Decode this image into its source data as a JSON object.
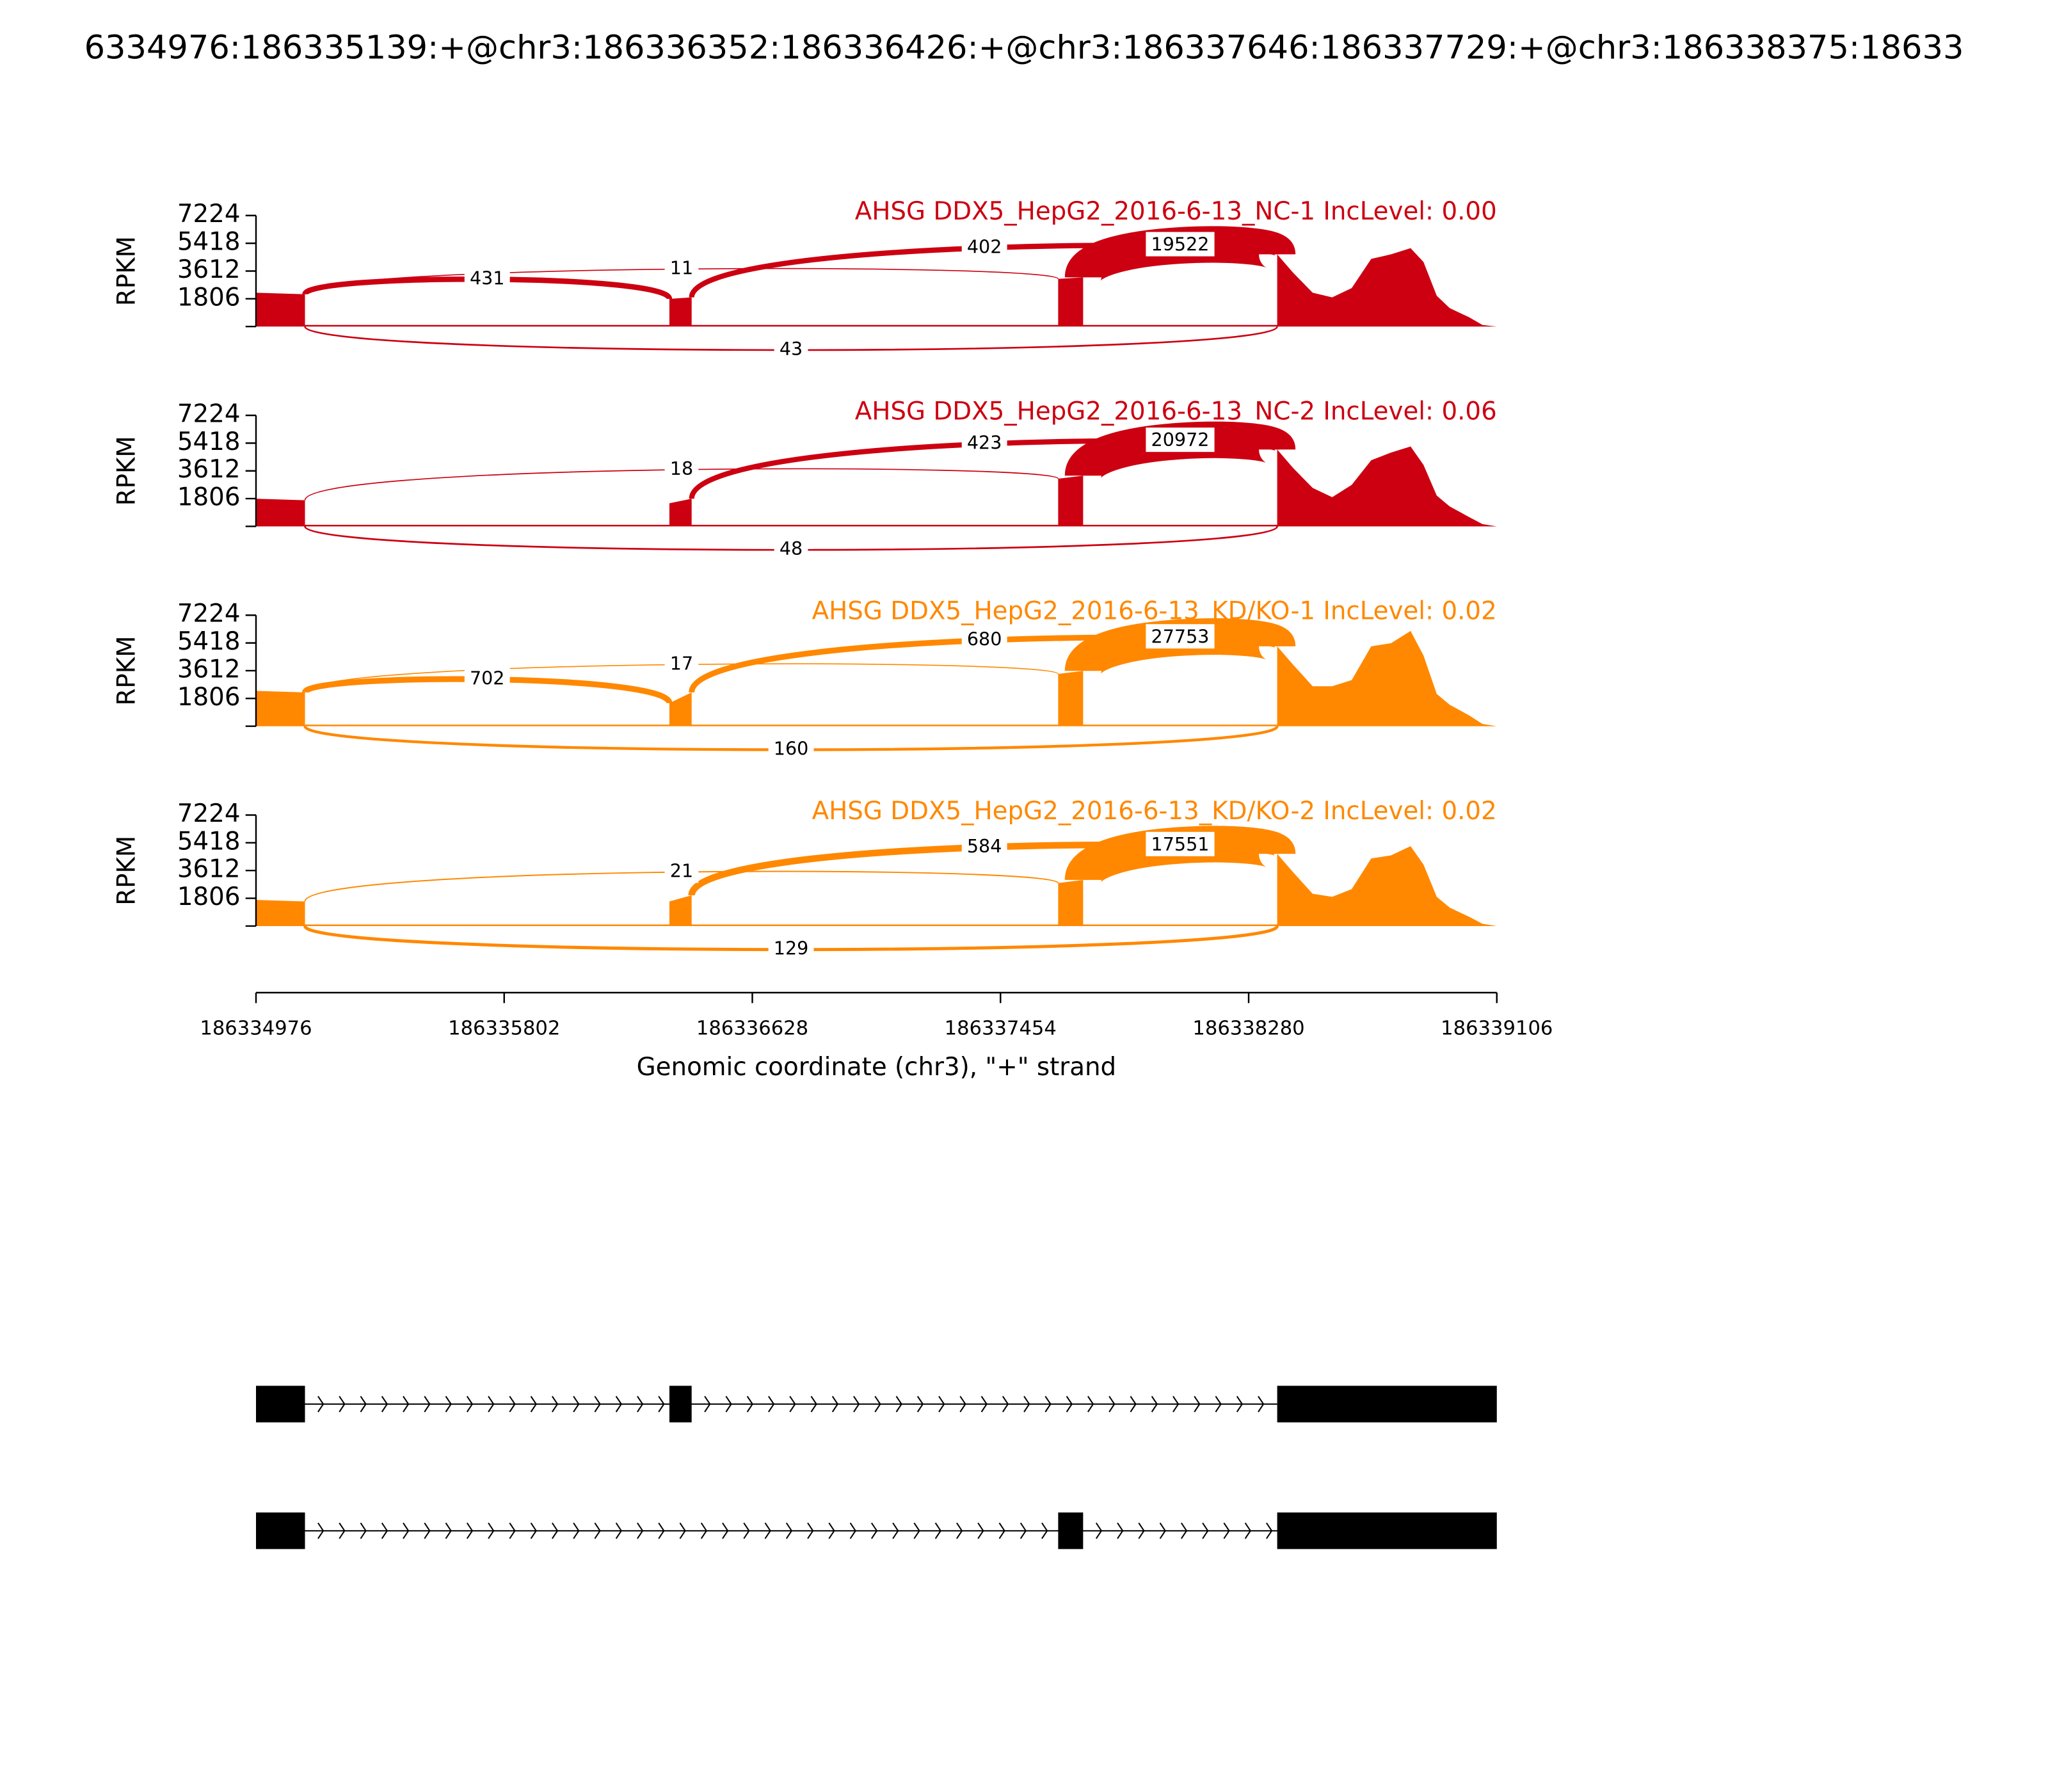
{
  "chart_data": {
    "type": "sashimi",
    "title": "6334976:186335139:+@chr3:186336352:186336426:+@chr3:186337646:186337729:+@chr3:186338375:18633",
    "xlabel": "Genomic coordinate (chr3), \"+\" strand",
    "ylabel": "RPKM",
    "xlim": [
      186334976,
      186339106
    ],
    "xticks": [
      186334976,
      186335802,
      186336628,
      186337454,
      186338280,
      186339106
    ],
    "ylim": [
      0,
      7224
    ],
    "yticks": [
      1806,
      3612,
      5418,
      7224
    ],
    "coverage_x": [
      186334976,
      186334976,
      186335139,
      186335139,
      186336352,
      186336352,
      186336426,
      186336426,
      186337646,
      186337646,
      186337729,
      186337729,
      186338375,
      186338375,
      186338428,
      186338493,
      186338558,
      186338623,
      186338688,
      186338754,
      186338819,
      186338862,
      186338906,
      186338949,
      186339014,
      186339058,
      186339106
    ],
    "panels": [
      {
        "label": "AHSG DDX5_HepG2_2016-6-13_NC-1 IncLevel: 0.00",
        "color": "#cc0011",
        "coverage": [
          0,
          2200,
          2100,
          100,
          100,
          1800,
          1900,
          100,
          100,
          3100,
          3200,
          100,
          100,
          4700,
          3500,
          2200,
          1900,
          2500,
          4400,
          4700,
          5100,
          4200,
          2000,
          1200,
          600,
          100,
          0
        ],
        "junctions": [
          {
            "start": 186335139,
            "end": 186336352,
            "count": 431,
            "side": "above"
          },
          {
            "start": 186335139,
            "end": 186337646,
            "count": 11,
            "side": "above"
          },
          {
            "start": 186336426,
            "end": 186338375,
            "count": 402,
            "side": "above"
          },
          {
            "start": 186337729,
            "end": 186338375,
            "count": 19522,
            "side": "above"
          },
          {
            "start": 186335139,
            "end": 186338375,
            "count": 43,
            "side": "below"
          }
        ]
      },
      {
        "label": "AHSG DDX5_HepG2_2016-6-13_NC-2 IncLevel: 0.06",
        "color": "#cc0011",
        "coverage": [
          0,
          1800,
          1700,
          100,
          100,
          1500,
          1800,
          100,
          100,
          3100,
          3300,
          100,
          100,
          5000,
          3800,
          2500,
          1900,
          2700,
          4300,
          4800,
          5200,
          4000,
          2000,
          1300,
          600,
          150,
          0
        ],
        "junctions": [
          {
            "start": 186335139,
            "end": 186337646,
            "count": 18,
            "side": "above"
          },
          {
            "start": 186336426,
            "end": 186338375,
            "count": 423,
            "side": "above"
          },
          {
            "start": 186337729,
            "end": 186338375,
            "count": 20972,
            "side": "above"
          },
          {
            "start": 186335139,
            "end": 186338375,
            "count": 48,
            "side": "below"
          }
        ]
      },
      {
        "label": "AHSG DDX5_HepG2_2016-6-13_KD/KO-1 IncLevel: 0.02",
        "color": "#ff8800",
        "coverage": [
          0,
          2300,
          2200,
          100,
          100,
          1500,
          2200,
          100,
          100,
          3400,
          3600,
          100,
          100,
          5200,
          4000,
          2600,
          2600,
          3000,
          5200,
          5400,
          6200,
          4600,
          2100,
          1400,
          700,
          150,
          0
        ],
        "junctions": [
          {
            "start": 186335139,
            "end": 186336352,
            "count": 702,
            "side": "above"
          },
          {
            "start": 186335139,
            "end": 186337646,
            "count": 17,
            "side": "above"
          },
          {
            "start": 186336426,
            "end": 186338375,
            "count": 680,
            "side": "above"
          },
          {
            "start": 186337729,
            "end": 186338375,
            "count": 27753,
            "side": "above"
          },
          {
            "start": 186335139,
            "end": 186338375,
            "count": 160,
            "side": "below"
          }
        ]
      },
      {
        "label": "AHSG DDX5_HepG2_2016-6-13_KD/KO-2 IncLevel: 0.02",
        "color": "#ff8800",
        "coverage": [
          0,
          1700,
          1600,
          100,
          100,
          1600,
          2000,
          100,
          100,
          2800,
          3000,
          100,
          100,
          4700,
          3500,
          2100,
          1900,
          2400,
          4400,
          4600,
          5200,
          4000,
          1900,
          1200,
          600,
          150,
          0
        ],
        "junctions": [
          {
            "start": 186335139,
            "end": 186337646,
            "count": 21,
            "side": "above"
          },
          {
            "start": 186336426,
            "end": 186338375,
            "count": 584,
            "side": "above"
          },
          {
            "start": 186337729,
            "end": 186338375,
            "count": 17551,
            "side": "above"
          },
          {
            "start": 186335139,
            "end": 186338375,
            "count": 129,
            "side": "below"
          }
        ]
      }
    ],
    "transcripts": [
      {
        "exons": [
          [
            186334976,
            186335139
          ],
          [
            186336352,
            186336426
          ],
          [
            186338375,
            186339106
          ]
        ]
      },
      {
        "exons": [
          [
            186334976,
            186335139
          ],
          [
            186337646,
            186337729
          ],
          [
            186338375,
            186339106
          ]
        ]
      }
    ]
  }
}
